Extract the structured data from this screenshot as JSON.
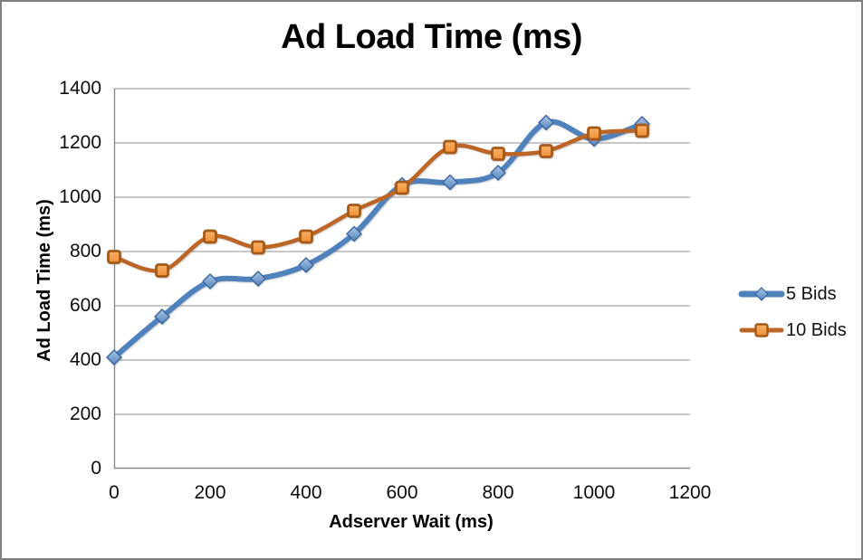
{
  "frame": {
    "border_color": "#808080",
    "background": "#ffffff"
  },
  "chart_data": {
    "type": "line",
    "title": "Ad Load Time (ms)",
    "xlabel": "Adserver Wait (ms)",
    "ylabel": "Ad Load Time (ms)",
    "x": [
      0,
      100,
      200,
      300,
      400,
      500,
      600,
      700,
      800,
      900,
      1000,
      1100
    ],
    "series": [
      {
        "name": "5 Bids",
        "marker": "diamond",
        "line_color": "#4f81bd",
        "line_width": 6,
        "marker_fill_light": "#a9c7e8",
        "marker_fill": "#5585bd",
        "marker_border": "#3c649c",
        "values": [
          410,
          560,
          690,
          700,
          750,
          865,
          1045,
          1055,
          1090,
          1275,
          1215,
          1270
        ]
      },
      {
        "name": "10 Bids",
        "marker": "square",
        "line_color": "#bc6526",
        "line_width": 4.5,
        "marker_fill_light": "#f7b269",
        "marker_fill": "#ef8f35",
        "marker_border": "#a55a18",
        "values": [
          780,
          730,
          855,
          815,
          855,
          950,
          1035,
          1185,
          1160,
          1170,
          1235,
          1245
        ]
      }
    ],
    "xlim": [
      0,
      1200
    ],
    "ylim": [
      0,
      1400
    ],
    "xticks": [
      0,
      200,
      400,
      600,
      800,
      1000,
      1200
    ],
    "yticks": [
      0,
      200,
      400,
      600,
      800,
      1000,
      1200,
      1400
    ],
    "grid": true,
    "smoothed": true,
    "gridline_color": "#a6a6a6",
    "axis_color": "#8a8a8a",
    "legend_position": "right"
  }
}
